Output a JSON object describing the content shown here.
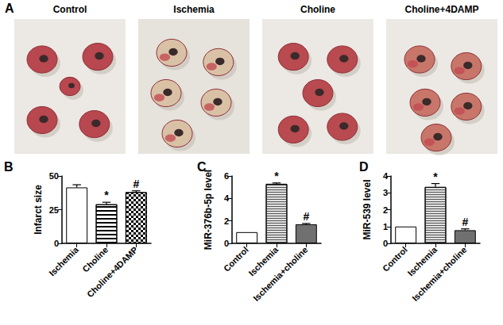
{
  "panel_a": {
    "label": "A",
    "images": [
      "Control",
      "Ischemia",
      "Choline",
      "Choline+4DAMP"
    ]
  },
  "chart_data": [
    {
      "type": "bar",
      "label": "B",
      "ylabel": "Infarct size",
      "categories": [
        "Ischemia",
        "Choline",
        "Choline+4DAMP"
      ],
      "values": [
        41.5,
        29,
        38
      ],
      "errors": [
        2,
        1.5,
        1
      ],
      "annotations": [
        null,
        "*",
        "#"
      ],
      "colors": [
        "#ffffff",
        "#ffffff",
        "#ffffff"
      ],
      "ylim": [
        0,
        50
      ],
      "yticks": [
        0,
        25,
        50
      ],
      "grid": false
    },
    {
      "type": "bar",
      "label": "C",
      "ylabel": "MiR-376b-5p level",
      "categories": [
        "Control",
        "Ischemia",
        "Ischemia+choline"
      ],
      "values": [
        1,
        5.3,
        1.7
      ],
      "errors": [
        0,
        0.08,
        0.07
      ],
      "annotations": [
        null,
        "*",
        "#"
      ],
      "colors": [
        "#ffffff",
        "#e0e0e0",
        "#707070"
      ],
      "ylim": [
        0,
        6
      ],
      "yticks": [
        0,
        2,
        4,
        6
      ],
      "grid": false
    },
    {
      "type": "bar",
      "label": "D",
      "ylabel": "MiR-539 level",
      "categories": [
        "Control",
        "Ischemia",
        "Ischemia+choline"
      ],
      "values": [
        1,
        3.35,
        0.78
      ],
      "errors": [
        0,
        0.2,
        0.08
      ],
      "annotations": [
        null,
        "*",
        "#"
      ],
      "colors": [
        "#ffffff",
        "#e0e0e0",
        "#707070"
      ],
      "ylim": [
        0,
        4
      ],
      "yticks": [
        0,
        1,
        2,
        3,
        4
      ],
      "grid": false
    }
  ]
}
